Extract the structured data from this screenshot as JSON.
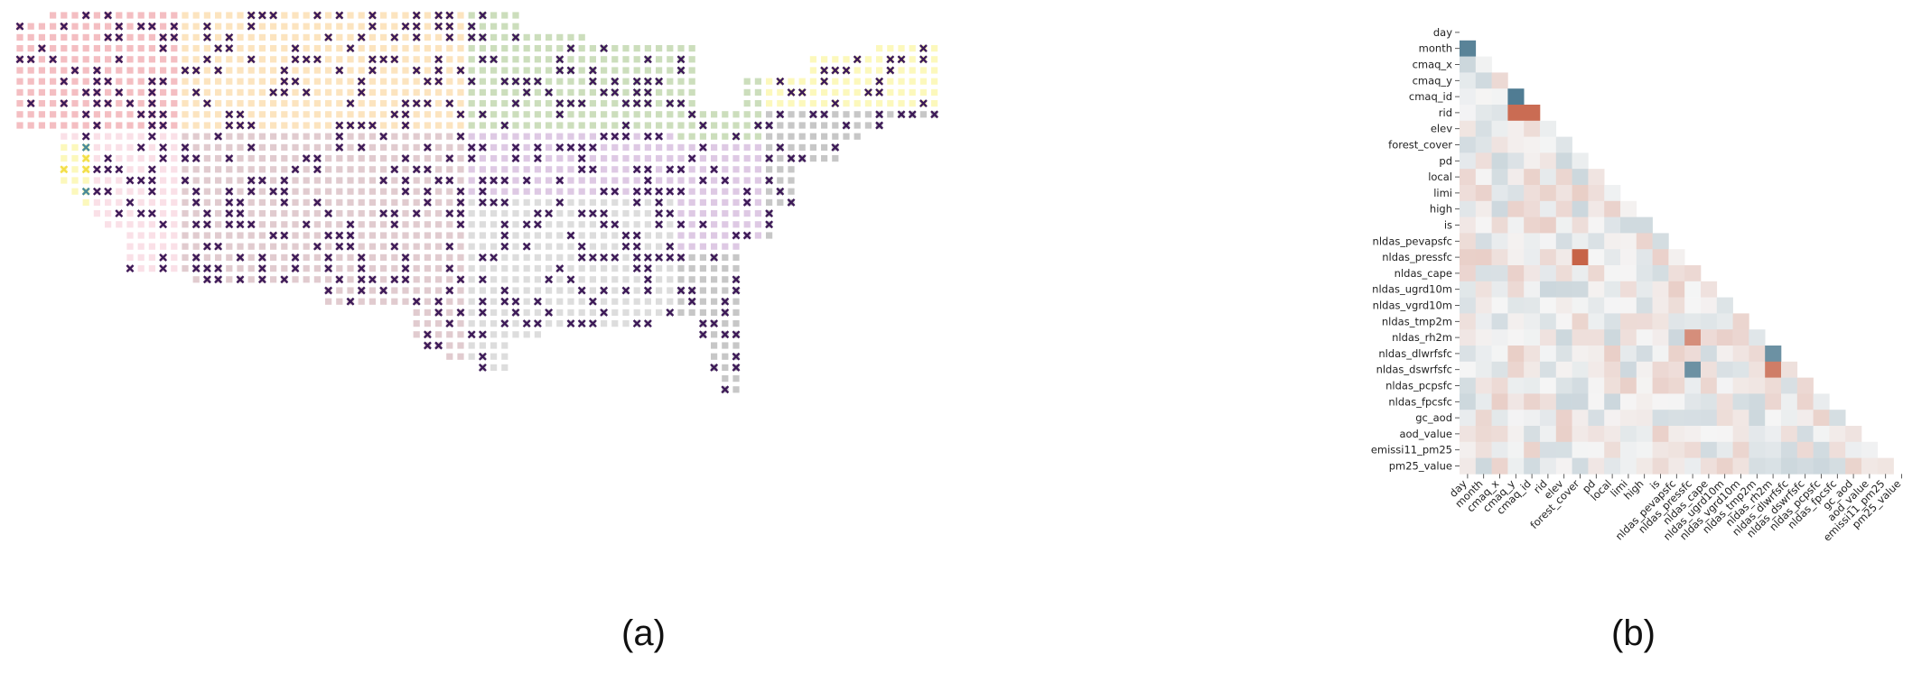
{
  "figure": {
    "panel_a_label": "(a)",
    "panel_b_label": "(b)"
  },
  "chart_data": [
    {
      "type": "scatter",
      "panel": "(a)",
      "marker_layers": [
        "region-square",
        "cross"
      ],
      "colors": {
        "region_square_palette": [
          "#f2b3b7",
          "#fbdfb4",
          "#c3d8b0",
          "#fbf7b0",
          "#f9dbe3",
          "#dcc2c7",
          "#d8c0df",
          "#d7d7d7",
          "#bdbdbd"
        ],
        "cross_majority": "#3d1a58",
        "cross_minority_yellow": "#f3de48",
        "cross_minority_teal": "#4a8b98"
      }
    },
    {
      "type": "heatmap",
      "panel": "(b)",
      "layout": "lower-triangle",
      "labels": [
        "day",
        "month",
        "cmaq_x",
        "cmaq_y",
        "cmaq_id",
        "rid",
        "elev",
        "forest_cover",
        "pd",
        "local",
        "limi",
        "high",
        "is",
        "nldas_pevapsfc",
        "nldas_pressfc",
        "nldas_cape",
        "nldas_ugrd10m",
        "nldas_vgrd10m",
        "nldas_tmp2m",
        "nldas_rh2m",
        "nldas_dlwrfsfc",
        "nldas_dswrfsfc",
        "nldas_pcpsfc",
        "nldas_fpcsfc",
        "gc_aod",
        "aod_value",
        "emissi11_pm25",
        "pm25_value"
      ],
      "colormap": {
        "negative": "#3e6f88",
        "neutral": "#f5f5f5",
        "positive": "#bf4a2a"
      },
      "value_range": [
        -1,
        1
      ],
      "strong_cells": [
        {
          "row": "month",
          "col": "day",
          "value": -0.85
        },
        {
          "row": "cmaq_id",
          "col": "cmaq_y",
          "value": -0.9
        },
        {
          "row": "rid",
          "col": "cmaq_y",
          "value": 0.8
        },
        {
          "row": "rid",
          "col": "cmaq_id",
          "value": 0.8
        },
        {
          "row": "nldas_pressfc",
          "col": "forest_cover",
          "value": 0.85
        },
        {
          "row": "nldas_rh2m",
          "col": "nldas_pressfc",
          "value": 0.6
        },
        {
          "row": "nldas_dlwrfsfc",
          "col": "nldas_rh2m",
          "value": -0.75
        },
        {
          "row": "nldas_dswrfsfc",
          "col": "nldas_rh2m",
          "value": 0.7
        },
        {
          "row": "nldas_dswrfsfc",
          "col": "nldas_pressfc",
          "value": -0.75
        }
      ]
    }
  ]
}
